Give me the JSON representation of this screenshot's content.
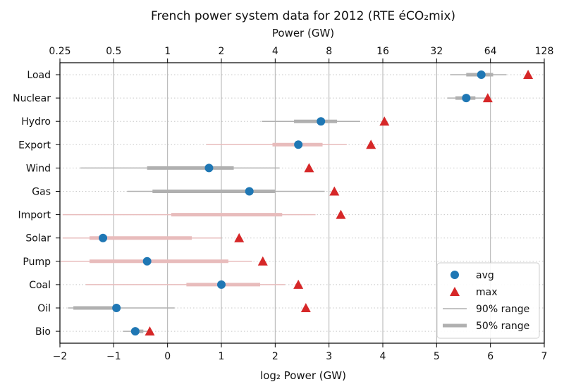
{
  "chart_data": {
    "type": "dot-range",
    "title": "French power system data for 2012 (RTE éCO₂mix)",
    "xlabel": "log₂ Power (GW)",
    "x2label": "Power (GW)",
    "xlim": [
      -2,
      7
    ],
    "xticks": [
      -2,
      -1,
      0,
      1,
      2,
      3,
      4,
      5,
      6,
      7
    ],
    "xtick_labels": [
      "−2",
      "−1",
      "0",
      "1",
      "2",
      "3",
      "4",
      "5",
      "6",
      "7"
    ],
    "x2ticks": [
      "0.25",
      "0.5",
      "1",
      "2",
      "4",
      "8",
      "16",
      "32",
      "64",
      "128"
    ],
    "grid": "vertical solid, horizontal dotted",
    "legend_position": "lower-right",
    "legend": {
      "avg": "avg",
      "max": "max",
      "r90": "90% range",
      "r50": "50% range"
    },
    "colors": {
      "avg": "#1f77b4",
      "max": "#d62728",
      "range_gray": "#b0b0b0",
      "range_pink": "#e8bcbc"
    },
    "categories": [
      {
        "name": "Load",
        "avg": 5.83,
        "max": 6.7,
        "r90": [
          5.25,
          6.3
        ],
        "r50": [
          5.55,
          6.05
        ],
        "color": "gray"
      },
      {
        "name": "Nuclear",
        "avg": 5.55,
        "max": 5.95,
        "r90": [
          5.2,
          5.95
        ],
        "r50": [
          5.35,
          5.72
        ],
        "color": "gray"
      },
      {
        "name": "Hydro",
        "avg": 2.85,
        "max": 4.03,
        "r90": [
          1.75,
          3.58
        ],
        "r50": [
          2.35,
          3.15
        ],
        "color": "gray"
      },
      {
        "name": "Export",
        "avg": 2.43,
        "max": 3.78,
        "r90": [
          0.72,
          3.33
        ],
        "r50": [
          1.95,
          2.88
        ],
        "color": "pink"
      },
      {
        "name": "Wind",
        "avg": 0.77,
        "max": 2.63,
        "r90": [
          -1.62,
          2.08
        ],
        "r50": [
          -0.38,
          1.23
        ],
        "color": "gray"
      },
      {
        "name": "Gas",
        "avg": 1.52,
        "max": 3.1,
        "r90": [
          -0.75,
          2.92
        ],
        "r50": [
          -0.28,
          2.0
        ],
        "color": "gray"
      },
      {
        "name": "Import",
        "avg": null,
        "max": 3.22,
        "r90": [
          -1.95,
          2.75
        ],
        "r50": [
          0.07,
          2.13
        ],
        "color": "pink"
      },
      {
        "name": "Solar",
        "avg": -1.2,
        "max": 1.33,
        "r90": [
          -1.95,
          1.0
        ],
        "r50": [
          -1.45,
          0.45
        ],
        "color": "pink"
      },
      {
        "name": "Pump",
        "avg": -0.38,
        "max": 1.77,
        "r90": [
          -1.98,
          1.57
        ],
        "r50": [
          -1.45,
          1.13
        ],
        "color": "pink"
      },
      {
        "name": "Coal",
        "avg": 1.0,
        "max": 2.43,
        "r90": [
          -1.52,
          2.18
        ],
        "r50": [
          0.35,
          1.72
        ],
        "color": "pink"
      },
      {
        "name": "Oil",
        "avg": -0.95,
        "max": 2.57,
        "r90": [
          -1.85,
          0.13
        ],
        "r50": [
          -1.75,
          -0.9
        ],
        "color": "gray"
      },
      {
        "name": "Bio",
        "avg": -0.6,
        "max": -0.33,
        "r90": [
          -0.83,
          -0.33
        ],
        "r50": [
          -0.68,
          -0.45
        ],
        "color": "gray"
      }
    ]
  }
}
